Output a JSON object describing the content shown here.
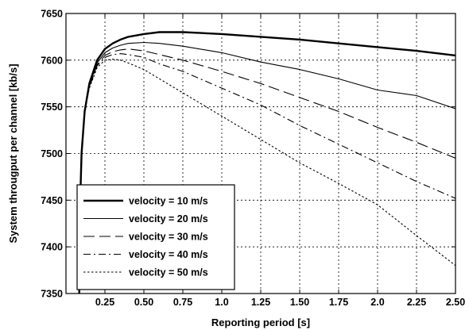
{
  "chart_data": {
    "type": "line",
    "title": "",
    "xlabel": "Reporting period [s]",
    "ylabel": "System througput per channel [kb/s]",
    "xlim": [
      0.0,
      2.5
    ],
    "ylim": [
      7350,
      7650
    ],
    "xticks": [
      0.25,
      0.5,
      0.75,
      1.0,
      1.25,
      1.5,
      1.75,
      2.0,
      2.25,
      2.5
    ],
    "xtick_labels": [
      "0.25",
      "0.50",
      "0.75",
      "1.0",
      "1.25",
      "1.50",
      "1.75",
      "2.0",
      "2.25",
      "2.50"
    ],
    "yticks": [
      7350,
      7400,
      7450,
      7500,
      7550,
      7600,
      7650
    ],
    "ytick_labels": [
      "7350",
      "7400",
      "7450",
      "7500",
      "7550",
      "7600",
      "7650"
    ],
    "grid": true,
    "legend_position": "bottom-left",
    "series": [
      {
        "name": "velocity = 10 m/s",
        "dash": "solid-thick",
        "x": [
          0.085,
          0.09,
          0.1,
          0.12,
          0.15,
          0.2,
          0.25,
          0.3,
          0.35,
          0.4,
          0.5,
          0.6,
          0.75,
          1.0,
          1.25,
          1.5,
          1.75,
          2.0,
          2.25,
          2.5
        ],
        "y": [
          7350,
          7440,
          7500,
          7545,
          7575,
          7600,
          7612,
          7618,
          7622,
          7625,
          7628,
          7630,
          7630,
          7628,
          7625,
          7622,
          7618,
          7614,
          7610,
          7605
        ]
      },
      {
        "name": "velocity = 20 m/s",
        "dash": "solid-thin",
        "x": [
          0.085,
          0.09,
          0.1,
          0.12,
          0.15,
          0.2,
          0.25,
          0.3,
          0.35,
          0.4,
          0.5,
          0.6,
          0.75,
          1.0,
          1.25,
          1.5,
          1.75,
          2.0,
          2.25,
          2.5
        ],
        "y": [
          7350,
          7440,
          7500,
          7545,
          7573,
          7597,
          7608,
          7613,
          7616,
          7618,
          7619,
          7618,
          7615,
          7608,
          7598,
          7590,
          7580,
          7568,
          7562,
          7548
        ]
      },
      {
        "name": "velocity = 30 m/s",
        "dash": "long-dash",
        "x": [
          0.085,
          0.09,
          0.1,
          0.12,
          0.15,
          0.2,
          0.25,
          0.3,
          0.35,
          0.4,
          0.5,
          0.6,
          0.75,
          1.0,
          1.25,
          1.5,
          1.75,
          2.0,
          2.25,
          2.5
        ],
        "y": [
          7350,
          7440,
          7500,
          7545,
          7572,
          7595,
          7605,
          7609,
          7611,
          7612,
          7610,
          7606,
          7600,
          7588,
          7575,
          7560,
          7545,
          7528,
          7512,
          7495
        ]
      },
      {
        "name": "velocity = 40 m/s",
        "dash": "dash-dot",
        "x": [
          0.085,
          0.09,
          0.1,
          0.12,
          0.15,
          0.2,
          0.25,
          0.3,
          0.35,
          0.4,
          0.5,
          0.6,
          0.75,
          1.0,
          1.25,
          1.5,
          1.75,
          2.0,
          2.25,
          2.5
        ],
        "y": [
          7350,
          7440,
          7500,
          7545,
          7571,
          7594,
          7603,
          7606,
          7607,
          7606,
          7603,
          7596,
          7588,
          7570,
          7552,
          7530,
          7510,
          7490,
          7470,
          7452
        ]
      },
      {
        "name": "velocity = 50 m/s",
        "dash": "dotted",
        "x": [
          0.085,
          0.09,
          0.1,
          0.12,
          0.15,
          0.2,
          0.25,
          0.3,
          0.35,
          0.4,
          0.5,
          0.6,
          0.75,
          1.0,
          1.25,
          1.5,
          1.75,
          2.0,
          2.25,
          2.5
        ],
        "y": [
          7350,
          7440,
          7500,
          7545,
          7570,
          7592,
          7600,
          7601,
          7600,
          7597,
          7590,
          7580,
          7565,
          7540,
          7515,
          7490,
          7468,
          7445,
          7412,
          7380
        ]
      }
    ]
  }
}
